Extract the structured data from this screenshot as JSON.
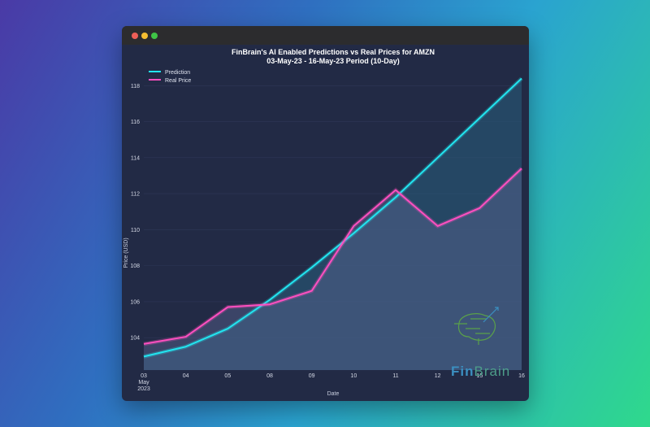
{
  "window": {
    "controls": [
      "close",
      "minimize",
      "maximize"
    ],
    "colors": {
      "close": "#ee5f57",
      "minimize": "#f5be31",
      "maximize": "#3fc446"
    }
  },
  "chart_data": {
    "type": "line",
    "title": "FinBrain's AI Enabled Predictions vs Real Prices for AMZN",
    "subtitle": "03-May-23 - 16-May-23 Period (10-Day)",
    "xlabel": "Date",
    "ylabel": "Price (USD)",
    "x": [
      "03",
      "04",
      "05",
      "08",
      "09",
      "10",
      "11",
      "12",
      "15",
      "16"
    ],
    "x_sublabel": [
      "May",
      "2023"
    ],
    "yticks": [
      104,
      106,
      108,
      110,
      112,
      114,
      116,
      118
    ],
    "ylim": [
      102.2,
      118.6
    ],
    "grid": true,
    "legend": "top-left",
    "series": [
      {
        "name": "Prediction",
        "color": "#22e5f0",
        "values": [
          102.95,
          103.5,
          104.5,
          106.1,
          107.9,
          109.8,
          111.8,
          114.0,
          116.2,
          118.4
        ]
      },
      {
        "name": "Real Price",
        "color": "#ff4fc0",
        "values": [
          103.65,
          104.05,
          105.7,
          105.85,
          106.6,
          110.2,
          112.2,
          110.2,
          111.2,
          113.4
        ]
      }
    ]
  },
  "watermark": {
    "text": "FinBrain"
  }
}
